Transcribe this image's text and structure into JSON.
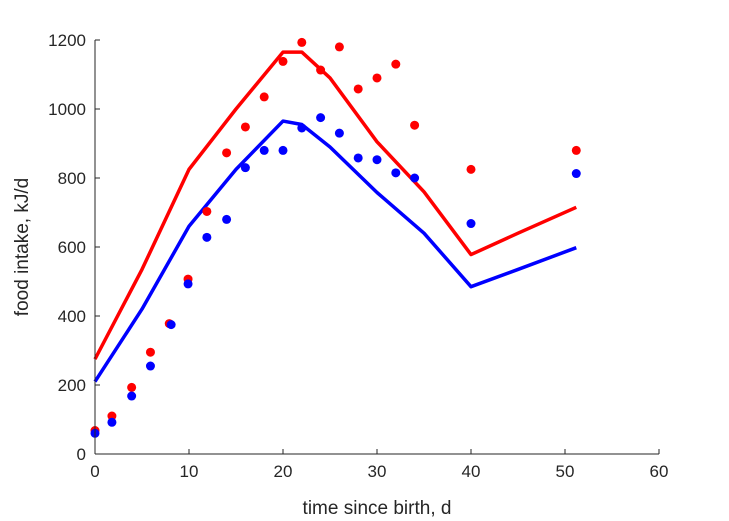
{
  "chart_data": {
    "type": "line",
    "xlabel": "time since birth, d",
    "ylabel": "food intake, kJ/d",
    "xlim": [
      0,
      60
    ],
    "ylim": [
      0,
      1200
    ],
    "xticks": [
      0,
      10,
      20,
      30,
      40,
      50,
      60
    ],
    "yticks": [
      0,
      200,
      400,
      600,
      800,
      1000,
      1200
    ],
    "grid": false,
    "box": "left-bottom axes only",
    "series": [
      {
        "kind": "line",
        "color": "#ff0000",
        "x": [
          0,
          5,
          10,
          15,
          20,
          22,
          25,
          30,
          35,
          40,
          45,
          51.2
        ],
        "y": [
          275,
          535,
          825,
          1000,
          1165,
          1165,
          1090,
          905,
          760,
          578,
          640,
          715
        ]
      },
      {
        "kind": "line",
        "color": "#0000ff",
        "x": [
          0,
          5,
          10,
          15,
          20,
          22,
          25,
          30,
          35,
          40,
          45,
          51.2
        ],
        "y": [
          210,
          420,
          660,
          825,
          965,
          955,
          890,
          758,
          640,
          485,
          535,
          598
        ]
      },
      {
        "kind": "scatter",
        "color": "#ff0000",
        "x": [
          0,
          1.8,
          3.9,
          5.9,
          7.9,
          9.9,
          11.9,
          14,
          16,
          18,
          20,
          22,
          24,
          26,
          28,
          30,
          32,
          34,
          40,
          51.2
        ],
        "y": [
          68,
          110,
          193,
          295,
          378,
          507,
          703,
          873,
          948,
          1035,
          1138,
          1193,
          1113,
          1180,
          1058,
          1090,
          1130,
          953,
          825,
          880
        ]
      },
      {
        "kind": "scatter",
        "color": "#0000ff",
        "x": [
          0,
          1.8,
          3.9,
          5.9,
          8.1,
          9.9,
          11.9,
          14,
          16,
          18,
          20,
          22,
          24,
          26,
          28,
          30,
          32,
          34,
          40,
          51.2
        ],
        "y": [
          60,
          92,
          168,
          255,
          375,
          493,
          628,
          680,
          830,
          880,
          880,
          945,
          975,
          930,
          858,
          853,
          815,
          800,
          668,
          813
        ]
      }
    ]
  }
}
